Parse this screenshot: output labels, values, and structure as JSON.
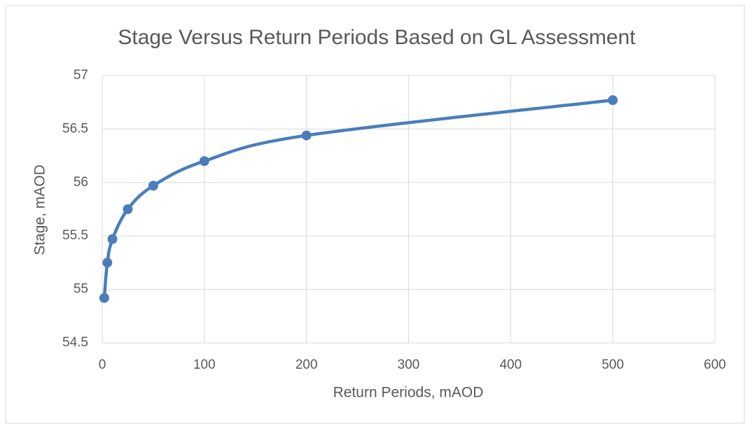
{
  "chart_data": {
    "type": "line",
    "title": "Stage Versus Return Periods Based on GL Assessment",
    "x_label": "Return Periods, mAOD",
    "y_label": "Stage, mAOD",
    "x": [
      2,
      5,
      10,
      25,
      50,
      100,
      200,
      500
    ],
    "series": [
      {
        "name": "Stage",
        "color": "#4a7ebb",
        "values": [
          54.92,
          55.25,
          55.47,
          55.75,
          55.97,
          56.2,
          56.44,
          56.77
        ]
      }
    ],
    "xlim": [
      0,
      600
    ],
    "xticks": [
      0,
      100,
      200,
      300,
      400,
      500,
      600
    ],
    "ylim": [
      54.5,
      57
    ],
    "yticks": [
      54.5,
      55,
      55.5,
      56,
      56.5,
      57
    ],
    "grid": true,
    "smooth": true
  }
}
